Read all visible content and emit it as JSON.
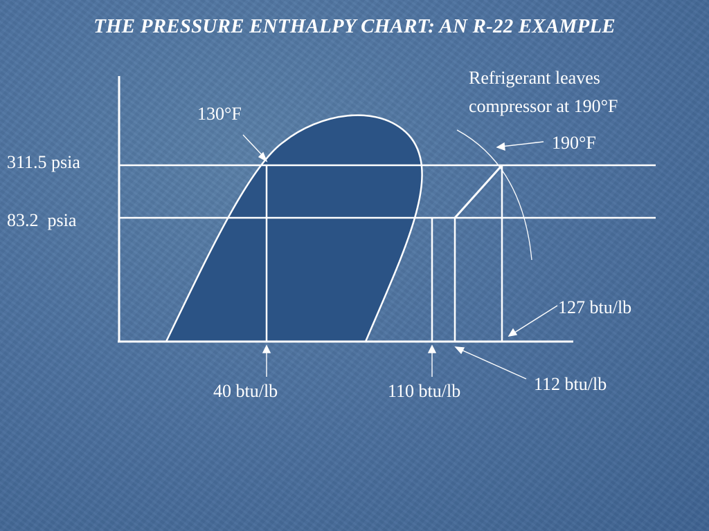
{
  "title": "THE PRESSURE ENTHALPY CHART: AN R-22 EXAMPLE",
  "labels": {
    "high_pressure": "311.5 psia",
    "low_pressure": "83.2  psia",
    "condensing_temp": "130°F",
    "leaves_compressor_line1": "Refrigerant leaves",
    "leaves_compressor_line2": "compressor at 190°F",
    "discharge_temp": "190°F",
    "enthalpy_127": "127 btu/lb",
    "enthalpy_40": "40 btu/lb",
    "enthalpy_110": "110 btu/lb",
    "enthalpy_112": "112 btu/lb"
  },
  "colors": {
    "saturation_dome_fill": "#2b5385",
    "lines": "#ffffff"
  }
}
